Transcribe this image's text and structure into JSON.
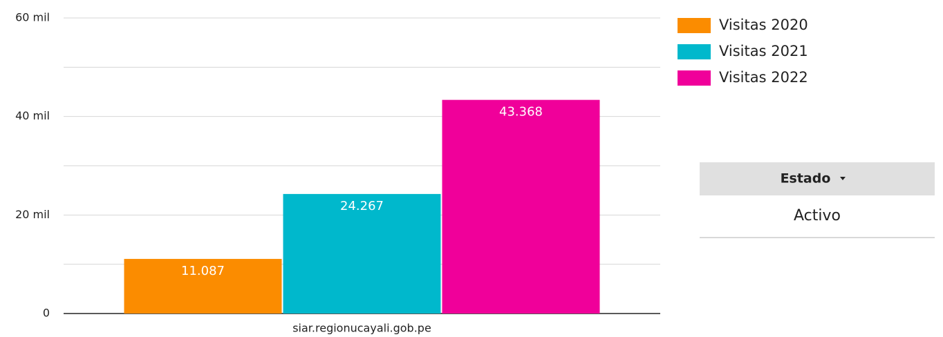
{
  "chart_data": {
    "type": "bar",
    "categories": [
      "siar.regionucayali.gob.pe"
    ],
    "series": [
      {
        "name": "Visitas 2020",
        "color": "#fb8c00",
        "values": [
          11087
        ],
        "value_labels": [
          "11.087"
        ]
      },
      {
        "name": "Visitas 2021",
        "color": "#00b8cc",
        "values": [
          24267
        ],
        "value_labels": [
          "24.267"
        ]
      },
      {
        "name": "Visitas 2022",
        "color": "#f0009a",
        "values": [
          43368
        ],
        "value_labels": [
          "43.368"
        ]
      }
    ],
    "ylim": [
      0,
      60000
    ],
    "yticks": [
      0,
      {
        "value": 20000,
        "label": "20 mil"
      },
      {
        "value": 40000,
        "label": "40 mil"
      },
      {
        "value": 60000,
        "label": "60 mil"
      }
    ],
    "minor_yticks": [
      10000,
      30000,
      50000
    ],
    "grid": true,
    "legend": "right"
  },
  "table": {
    "header": "Estado",
    "rows": [
      "Activo"
    ]
  }
}
